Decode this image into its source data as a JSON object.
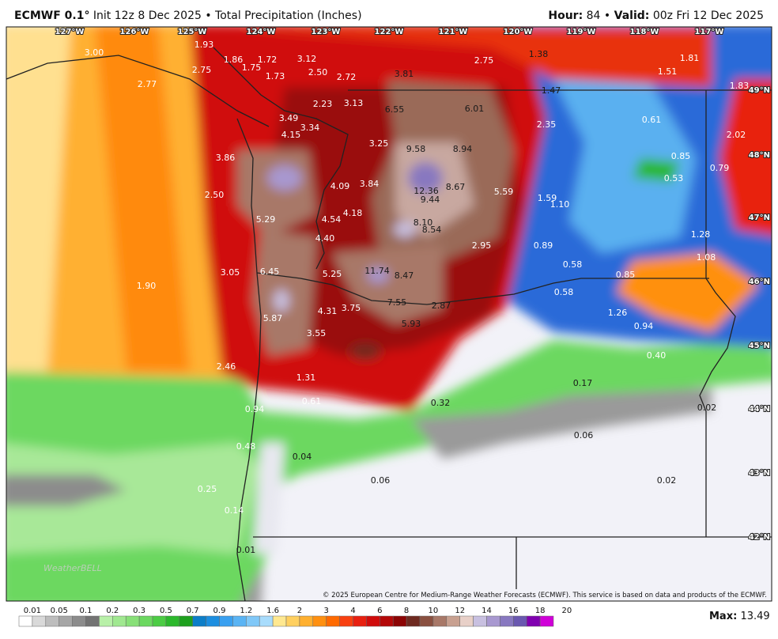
{
  "header": {
    "title": "ECMWF 0.1°",
    "init": "Init 12z 8 Dec 2025 • Total Precipitation (Inches)",
    "hour_label": "Hour:",
    "hour": "84 •",
    "valid_label": "Valid:",
    "valid": "00z Fri 12 Dec 2025"
  },
  "map": {
    "longitude_labels": [
      "127°W",
      "126°W",
      "125°W",
      "124°W",
      "123°W",
      "122°W",
      "121°W",
      "120°W",
      "119°W",
      "118°W",
      "117°W"
    ],
    "latitude_labels": [
      "49°N",
      "48°N",
      "47°N",
      "46°N",
      "45°N",
      "44°N",
      "43°N",
      "42°N"
    ],
    "point_labels": [
      "3.00",
      "1.93",
      "1.86",
      "1.72",
      "1.75",
      "2.75",
      "1.73",
      "3.12",
      "2.50",
      "2.72",
      "3.81",
      "2.75",
      "1.38",
      "1.81",
      "1.51",
      "2.77",
      "1.83",
      "1.47",
      "2.23",
      "3.13",
      "6.55",
      "6.01",
      "3.49",
      "3.34",
      "2.35",
      "0.61",
      "4.15",
      "3.25",
      "9.58",
      "8.94",
      "2.02",
      "3.86",
      "0.85",
      "0.79",
      "0.53",
      "4.09",
      "3.84",
      "12.36",
      "8.67",
      "5.59",
      "2.50",
      "9.44",
      "1.59",
      "1.10",
      "4.18",
      "4.54",
      "5.29",
      "8.10",
      "8.54",
      "1.28",
      "4.40",
      "2.95",
      "0.89",
      "1.08",
      "0.58",
      "3.05",
      "6.45",
      "5.25",
      "11.74",
      "8.47",
      "0.85",
      "1.90",
      "0.58",
      "7.55",
      "2.87",
      "4.31",
      "3.75",
      "1.26",
      "0.94",
      "5.87",
      "5.93",
      "3.55",
      "0.40",
      "2.46",
      "1.31",
      "0.17",
      "0.61",
      "0.32",
      "0.94",
      "0.02",
      "0.06",
      "0.48",
      "0.04",
      "0.06",
      "0.02",
      "0.25",
      "0.14",
      "0.01"
    ],
    "credit": "© 2025 European Centre for Medium-Range Weather Forecasts (ECMWF). This service is based on data and products of the ECMWF.",
    "watermark": "WeatherBELL"
  },
  "colorbar": {
    "labels": [
      "0.01",
      "0.05",
      "0.1",
      "0.2",
      "0.3",
      "0.5",
      "0.7",
      "0.9",
      "1.2",
      "1.6",
      "2",
      "3",
      "4",
      "6",
      "8",
      "10",
      "12",
      "14",
      "16",
      "18",
      "20"
    ],
    "colors": [
      "#ffffff",
      "#d9d9d9",
      "#bdbdbd",
      "#a6a6a6",
      "#8c8c8c",
      "#737373",
      "#b8f0a8",
      "#a0e890",
      "#88e078",
      "#6cd860",
      "#4ccc44",
      "#2cb82c",
      "#1ea01e",
      "#0c7ec8",
      "#1c8ee0",
      "#3aa0f0",
      "#5ab4f4",
      "#80c8f8",
      "#a8dcfc",
      "#ffe890",
      "#ffd060",
      "#ffb030",
      "#ff9010",
      "#ff6a00",
      "#f84010",
      "#e82010",
      "#d00c0c",
      "#b40808",
      "#8c0404",
      "#6e2a20",
      "#8a5040",
      "#a87868",
      "#c8a090",
      "#e8d0c8",
      "#c8c0e0",
      "#a898d0",
      "#8878c0",
      "#6a58b0",
      "#8000b0",
      "#d000d8"
    ]
  },
  "max": {
    "label": "Max:",
    "value": "13.49"
  }
}
